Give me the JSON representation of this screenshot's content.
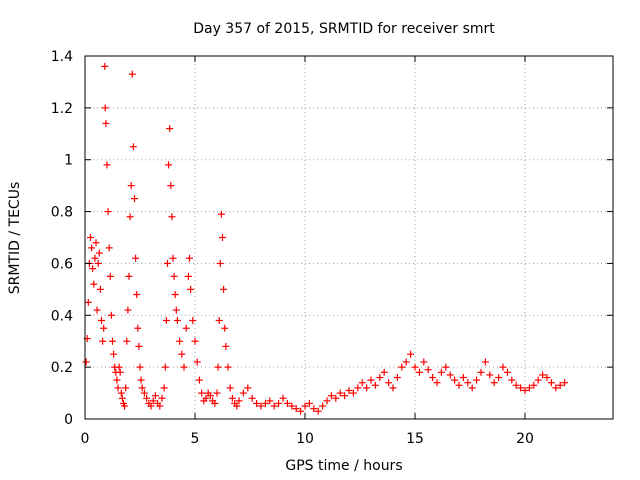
{
  "chart_data": {
    "type": "scatter",
    "title": "Day 357 of 2015, SRMTID for receiver smrt",
    "xlabel": "GPS time / hours",
    "ylabel": "SRMTID / TECUs",
    "xlim": [
      0,
      24
    ],
    "ylim": [
      0,
      1.4
    ],
    "xticks": [
      0,
      5,
      10,
      15,
      20
    ],
    "xtick_labels": [
      "0",
      "5",
      "10",
      "15",
      "20"
    ],
    "yticks": [
      0,
      0.2,
      0.4,
      0.6,
      0.8,
      1,
      1.2,
      1.4
    ],
    "ytick_labels": [
      "0",
      "0.2",
      "0.4",
      "0.6",
      "0.8",
      "1",
      "1.2",
      "1.4"
    ],
    "grid": true,
    "marker": "+",
    "color": "#ff0000",
    "series": [
      {
        "name": "SRMTID",
        "points": [
          [
            0.05,
            0.22
          ],
          [
            0.1,
            0.31
          ],
          [
            0.15,
            0.45
          ],
          [
            0.2,
            0.6
          ],
          [
            0.25,
            0.7
          ],
          [
            0.3,
            0.66
          ],
          [
            0.35,
            0.58
          ],
          [
            0.4,
            0.52
          ],
          [
            0.45,
            0.62
          ],
          [
            0.5,
            0.68
          ],
          [
            0.55,
            0.42
          ],
          [
            0.6,
            0.6
          ],
          [
            0.65,
            0.64
          ],
          [
            0.7,
            0.5
          ],
          [
            0.75,
            0.38
          ],
          [
            0.8,
            0.3
          ],
          [
            0.85,
            0.35
          ],
          [
            0.9,
            1.36
          ],
          [
            0.92,
            1.2
          ],
          [
            0.95,
            1.14
          ],
          [
            1.0,
            0.98
          ],
          [
            1.05,
            0.8
          ],
          [
            1.1,
            0.66
          ],
          [
            1.15,
            0.55
          ],
          [
            1.2,
            0.4
          ],
          [
            1.25,
            0.3
          ],
          [
            1.3,
            0.25
          ],
          [
            1.35,
            0.2
          ],
          [
            1.4,
            0.18
          ],
          [
            1.45,
            0.15
          ],
          [
            1.5,
            0.12
          ],
          [
            1.55,
            0.2
          ],
          [
            1.6,
            0.18
          ],
          [
            1.65,
            0.1
          ],
          [
            1.7,
            0.08
          ],
          [
            1.75,
            0.06
          ],
          [
            1.8,
            0.05
          ],
          [
            1.85,
            0.12
          ],
          [
            1.9,
            0.3
          ],
          [
            1.95,
            0.42
          ],
          [
            2.0,
            0.55
          ],
          [
            2.05,
            0.78
          ],
          [
            2.1,
            0.9
          ],
          [
            2.15,
            1.33
          ],
          [
            2.2,
            1.05
          ],
          [
            2.25,
            0.85
          ],
          [
            2.3,
            0.62
          ],
          [
            2.35,
            0.48
          ],
          [
            2.4,
            0.35
          ],
          [
            2.45,
            0.28
          ],
          [
            2.5,
            0.2
          ],
          [
            2.55,
            0.15
          ],
          [
            2.6,
            0.12
          ],
          [
            2.7,
            0.1
          ],
          [
            2.8,
            0.08
          ],
          [
            2.9,
            0.06
          ],
          [
            3.0,
            0.05
          ],
          [
            3.1,
            0.07
          ],
          [
            3.2,
            0.09
          ],
          [
            3.3,
            0.06
          ],
          [
            3.4,
            0.05
          ],
          [
            3.5,
            0.08
          ],
          [
            3.6,
            0.12
          ],
          [
            3.65,
            0.2
          ],
          [
            3.7,
            0.38
          ],
          [
            3.75,
            0.6
          ],
          [
            3.8,
            0.98
          ],
          [
            3.85,
            1.12
          ],
          [
            3.9,
            0.9
          ],
          [
            3.95,
            0.78
          ],
          [
            4.0,
            0.62
          ],
          [
            4.05,
            0.55
          ],
          [
            4.1,
            0.48
          ],
          [
            4.15,
            0.42
          ],
          [
            4.2,
            0.38
          ],
          [
            4.3,
            0.3
          ],
          [
            4.4,
            0.25
          ],
          [
            4.5,
            0.2
          ],
          [
            4.6,
            0.35
          ],
          [
            4.7,
            0.55
          ],
          [
            4.75,
            0.62
          ],
          [
            4.8,
            0.5
          ],
          [
            4.9,
            0.38
          ],
          [
            5.0,
            0.3
          ],
          [
            5.1,
            0.22
          ],
          [
            5.2,
            0.15
          ],
          [
            5.3,
            0.1
          ],
          [
            5.4,
            0.07
          ],
          [
            5.5,
            0.08
          ],
          [
            5.6,
            0.1
          ],
          [
            5.7,
            0.09
          ],
          [
            5.8,
            0.07
          ],
          [
            5.9,
            0.06
          ],
          [
            6.0,
            0.1
          ],
          [
            6.05,
            0.2
          ],
          [
            6.1,
            0.38
          ],
          [
            6.15,
            0.6
          ],
          [
            6.2,
            0.79
          ],
          [
            6.25,
            0.7
          ],
          [
            6.3,
            0.5
          ],
          [
            6.35,
            0.35
          ],
          [
            6.4,
            0.28
          ],
          [
            6.5,
            0.2
          ],
          [
            6.6,
            0.12
          ],
          [
            6.7,
            0.08
          ],
          [
            6.8,
            0.06
          ],
          [
            6.9,
            0.05
          ],
          [
            7.0,
            0.07
          ],
          [
            7.2,
            0.1
          ],
          [
            7.4,
            0.12
          ],
          [
            7.6,
            0.08
          ],
          [
            7.8,
            0.06
          ],
          [
            8.0,
            0.05
          ],
          [
            8.2,
            0.06
          ],
          [
            8.4,
            0.07
          ],
          [
            8.6,
            0.05
          ],
          [
            8.8,
            0.06
          ],
          [
            9.0,
            0.08
          ],
          [
            9.2,
            0.06
          ],
          [
            9.4,
            0.05
          ],
          [
            9.6,
            0.04
          ],
          [
            9.8,
            0.03
          ],
          [
            10.0,
            0.05
          ],
          [
            10.2,
            0.06
          ],
          [
            10.4,
            0.04
          ],
          [
            10.6,
            0.03
          ],
          [
            10.8,
            0.05
          ],
          [
            11.0,
            0.07
          ],
          [
            11.2,
            0.09
          ],
          [
            11.4,
            0.08
          ],
          [
            11.6,
            0.1
          ],
          [
            11.8,
            0.09
          ],
          [
            12.0,
            0.11
          ],
          [
            12.2,
            0.1
          ],
          [
            12.4,
            0.12
          ],
          [
            12.6,
            0.14
          ],
          [
            12.8,
            0.12
          ],
          [
            13.0,
            0.15
          ],
          [
            13.2,
            0.13
          ],
          [
            13.4,
            0.16
          ],
          [
            13.6,
            0.18
          ],
          [
            13.8,
            0.14
          ],
          [
            14.0,
            0.12
          ],
          [
            14.2,
            0.16
          ],
          [
            14.4,
            0.2
          ],
          [
            14.6,
            0.22
          ],
          [
            14.8,
            0.25
          ],
          [
            15.0,
            0.2
          ],
          [
            15.2,
            0.18
          ],
          [
            15.4,
            0.22
          ],
          [
            15.6,
            0.19
          ],
          [
            15.8,
            0.16
          ],
          [
            16.0,
            0.14
          ],
          [
            16.2,
            0.18
          ],
          [
            16.4,
            0.2
          ],
          [
            16.6,
            0.17
          ],
          [
            16.8,
            0.15
          ],
          [
            17.0,
            0.13
          ],
          [
            17.2,
            0.16
          ],
          [
            17.4,
            0.14
          ],
          [
            17.6,
            0.12
          ],
          [
            17.8,
            0.15
          ],
          [
            18.0,
            0.18
          ],
          [
            18.2,
            0.22
          ],
          [
            18.4,
            0.17
          ],
          [
            18.6,
            0.14
          ],
          [
            18.8,
            0.16
          ],
          [
            19.0,
            0.2
          ],
          [
            19.2,
            0.18
          ],
          [
            19.4,
            0.15
          ],
          [
            19.6,
            0.13
          ],
          [
            19.8,
            0.12
          ],
          [
            20.0,
            0.11
          ],
          [
            20.2,
            0.12
          ],
          [
            20.4,
            0.13
          ],
          [
            20.6,
            0.15
          ],
          [
            20.8,
            0.17
          ],
          [
            21.0,
            0.16
          ],
          [
            21.2,
            0.14
          ],
          [
            21.4,
            0.12
          ],
          [
            21.6,
            0.13
          ],
          [
            21.8,
            0.14
          ]
        ]
      }
    ]
  }
}
